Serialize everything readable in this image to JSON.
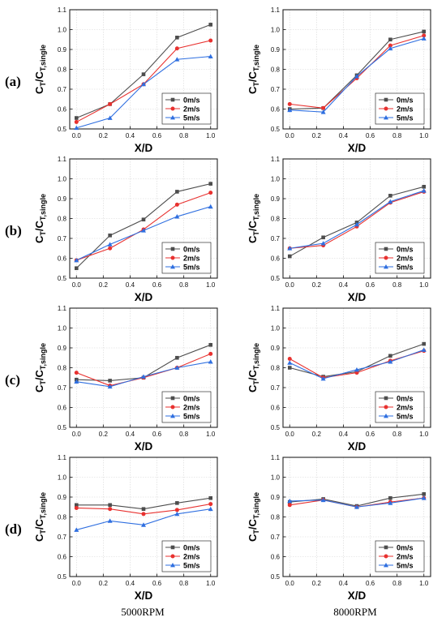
{
  "rows": [
    {
      "label": "(a)"
    },
    {
      "label": "(b)"
    },
    {
      "label": "(c)"
    },
    {
      "label": "(d)"
    }
  ],
  "columns": [
    {
      "label": "5000RPM"
    },
    {
      "label": "8000RPM"
    }
  ],
  "series_styles": [
    {
      "name": "0m/s",
      "color": "#4d4d4d",
      "marker": "square"
    },
    {
      "name": "2m/s",
      "color": "#e8312f",
      "marker": "circle"
    },
    {
      "name": "5m/s",
      "color": "#2f6fe0",
      "marker": "triangle"
    }
  ],
  "chart_data": [
    {
      "type": "line",
      "row": "(a)",
      "column": "5000RPM",
      "xlabel": "X/D",
      "ylabel": "C_T/C_T,single",
      "xlim": [
        -0.05,
        1.05
      ],
      "ylim": [
        0.5,
        1.1
      ],
      "xticks": [
        "0.0",
        "0.2",
        "0.4",
        "0.6",
        "0.8",
        "1.0"
      ],
      "yticks": [
        "0.5",
        "0.6",
        "0.7",
        "0.8",
        "0.9",
        "1.0",
        "1.1"
      ],
      "legend_position": "lower-right",
      "grid": true,
      "x": [
        0,
        0.25,
        0.5,
        0.75,
        1.0
      ],
      "series": [
        {
          "name": "0m/s",
          "values": [
            0.555,
            0.625,
            0.775,
            0.96,
            1.025
          ]
        },
        {
          "name": "2m/s",
          "values": [
            0.535,
            0.625,
            0.725,
            0.905,
            0.945
          ]
        },
        {
          "name": "5m/s",
          "values": [
            0.505,
            0.555,
            0.725,
            0.85,
            0.865
          ]
        }
      ]
    },
    {
      "type": "line",
      "row": "(a)",
      "column": "8000RPM",
      "xlabel": "X/D",
      "ylabel": "C_T/C_T,single",
      "xlim": [
        -0.05,
        1.05
      ],
      "ylim": [
        0.5,
        1.1
      ],
      "xticks": [
        "0.0",
        "0.2",
        "0.4",
        "0.6",
        "0.8",
        "1.0"
      ],
      "yticks": [
        "0.5",
        "0.6",
        "0.7",
        "0.8",
        "0.9",
        "1.0",
        "1.1"
      ],
      "legend_position": "lower-right",
      "grid": true,
      "x": [
        0,
        0.25,
        0.5,
        0.75,
        1.0
      ],
      "series": [
        {
          "name": "0m/s",
          "values": [
            0.6,
            0.605,
            0.77,
            0.95,
            0.99
          ]
        },
        {
          "name": "2m/s",
          "values": [
            0.625,
            0.605,
            0.755,
            0.92,
            0.97
          ]
        },
        {
          "name": "5m/s",
          "values": [
            0.595,
            0.585,
            0.765,
            0.905,
            0.955
          ]
        }
      ]
    },
    {
      "type": "line",
      "row": "(b)",
      "column": "5000RPM",
      "xlabel": "X/D",
      "ylabel": "C_T/C_T,single",
      "xlim": [
        -0.05,
        1.05
      ],
      "ylim": [
        0.5,
        1.1
      ],
      "xticks": [
        "0.0",
        "0.2",
        "0.4",
        "0.6",
        "0.8",
        "1.0"
      ],
      "yticks": [
        "0.5",
        "0.6",
        "0.7",
        "0.8",
        "0.9",
        "1.0",
        "1.1"
      ],
      "legend_position": "lower-right",
      "grid": true,
      "x": [
        0,
        0.25,
        0.5,
        0.75,
        1.0
      ],
      "series": [
        {
          "name": "0m/s",
          "values": [
            0.55,
            0.715,
            0.795,
            0.935,
            0.975
          ]
        },
        {
          "name": "2m/s",
          "values": [
            0.59,
            0.65,
            0.745,
            0.87,
            0.93
          ]
        },
        {
          "name": "5m/s",
          "values": [
            0.59,
            0.67,
            0.74,
            0.81,
            0.86
          ]
        }
      ]
    },
    {
      "type": "line",
      "row": "(b)",
      "column": "8000RPM",
      "xlabel": "X/D",
      "ylabel": "C_T/C_T,single",
      "xlim": [
        -0.05,
        1.05
      ],
      "ylim": [
        0.5,
        1.1
      ],
      "xticks": [
        "0.0",
        "0.2",
        "0.4",
        "0.6",
        "0.8",
        "1.0"
      ],
      "yticks": [
        "0.5",
        "0.6",
        "0.7",
        "0.8",
        "0.9",
        "1.0",
        "1.1"
      ],
      "legend_position": "lower-right",
      "grid": true,
      "x": [
        0,
        0.25,
        0.5,
        0.75,
        1.0
      ],
      "series": [
        {
          "name": "0m/s",
          "values": [
            0.61,
            0.705,
            0.78,
            0.915,
            0.96
          ]
        },
        {
          "name": "2m/s",
          "values": [
            0.65,
            0.665,
            0.76,
            0.88,
            0.935
          ]
        },
        {
          "name": "5m/s",
          "values": [
            0.65,
            0.675,
            0.77,
            0.885,
            0.94
          ]
        }
      ]
    },
    {
      "type": "line",
      "row": "(c)",
      "column": "5000RPM",
      "xlabel": "X/D",
      "ylabel": "C_T/C_T,single",
      "xlim": [
        -0.05,
        1.05
      ],
      "ylim": [
        0.5,
        1.1
      ],
      "xticks": [
        "0.0",
        "0.2",
        "0.4",
        "0.6",
        "0.8",
        "1.0"
      ],
      "yticks": [
        "0.5",
        "0.6",
        "0.7",
        "0.8",
        "0.9",
        "1.0",
        "1.1"
      ],
      "legend_position": "lower-right",
      "grid": true,
      "x": [
        0,
        0.25,
        0.5,
        0.75,
        1.0
      ],
      "series": [
        {
          "name": "0m/s",
          "values": [
            0.74,
            0.735,
            0.75,
            0.85,
            0.915
          ]
        },
        {
          "name": "2m/s",
          "values": [
            0.775,
            0.71,
            0.75,
            0.8,
            0.87
          ]
        },
        {
          "name": "5m/s",
          "values": [
            0.73,
            0.705,
            0.755,
            0.8,
            0.83
          ]
        }
      ]
    },
    {
      "type": "line",
      "row": "(c)",
      "column": "8000RPM",
      "xlabel": "X/D",
      "ylabel": "C_T/C_T,single",
      "xlim": [
        -0.05,
        1.05
      ],
      "ylim": [
        0.5,
        1.1
      ],
      "xticks": [
        "0.0",
        "0.2",
        "0.4",
        "0.6",
        "0.8",
        "1.0"
      ],
      "yticks": [
        "0.5",
        "0.6",
        "0.7",
        "0.8",
        "0.9",
        "1.0",
        "1.1"
      ],
      "legend_position": "lower-right",
      "grid": true,
      "x": [
        0,
        0.25,
        0.5,
        0.75,
        1.0
      ],
      "series": [
        {
          "name": "0m/s",
          "values": [
            0.8,
            0.755,
            0.78,
            0.86,
            0.92
          ]
        },
        {
          "name": "2m/s",
          "values": [
            0.845,
            0.75,
            0.775,
            0.835,
            0.885
          ]
        },
        {
          "name": "5m/s",
          "values": [
            0.825,
            0.745,
            0.79,
            0.83,
            0.89
          ]
        }
      ]
    },
    {
      "type": "line",
      "row": "(d)",
      "column": "5000RPM",
      "xlabel": "X/D",
      "ylabel": "C_T/C_T,single",
      "xlim": [
        -0.05,
        1.05
      ],
      "ylim": [
        0.5,
        1.1
      ],
      "xticks": [
        "0.0",
        "0.2",
        "0.4",
        "0.6",
        "0.8",
        "1.0"
      ],
      "yticks": [
        "0.5",
        "0.6",
        "0.7",
        "0.8",
        "0.9",
        "1.0",
        "1.1"
      ],
      "legend_position": "lower-right",
      "grid": true,
      "x": [
        0,
        0.25,
        0.5,
        0.75,
        1.0
      ],
      "series": [
        {
          "name": "0m/s",
          "values": [
            0.86,
            0.86,
            0.84,
            0.87,
            0.895
          ]
        },
        {
          "name": "2m/s",
          "values": [
            0.845,
            0.84,
            0.815,
            0.835,
            0.865
          ]
        },
        {
          "name": "5m/s",
          "values": [
            0.735,
            0.78,
            0.76,
            0.815,
            0.84
          ]
        }
      ]
    },
    {
      "type": "line",
      "row": "(d)",
      "column": "8000RPM",
      "xlabel": "X/D",
      "ylabel": "C_T/C_T,single",
      "xlim": [
        -0.05,
        1.05
      ],
      "ylim": [
        0.5,
        1.1
      ],
      "xticks": [
        "0.0",
        "0.2",
        "0.4",
        "0.6",
        "0.8",
        "1.0"
      ],
      "yticks": [
        "0.5",
        "0.6",
        "0.7",
        "0.8",
        "0.9",
        "1.0",
        "1.1"
      ],
      "legend_position": "lower-right",
      "grid": true,
      "x": [
        0,
        0.25,
        0.5,
        0.75,
        1.0
      ],
      "series": [
        {
          "name": "0m/s",
          "values": [
            0.875,
            0.89,
            0.855,
            0.895,
            0.915
          ]
        },
        {
          "name": "2m/s",
          "values": [
            0.86,
            0.885,
            0.85,
            0.875,
            0.895
          ]
        },
        {
          "name": "5m/s",
          "values": [
            0.88,
            0.885,
            0.85,
            0.87,
            0.895
          ]
        }
      ]
    }
  ]
}
